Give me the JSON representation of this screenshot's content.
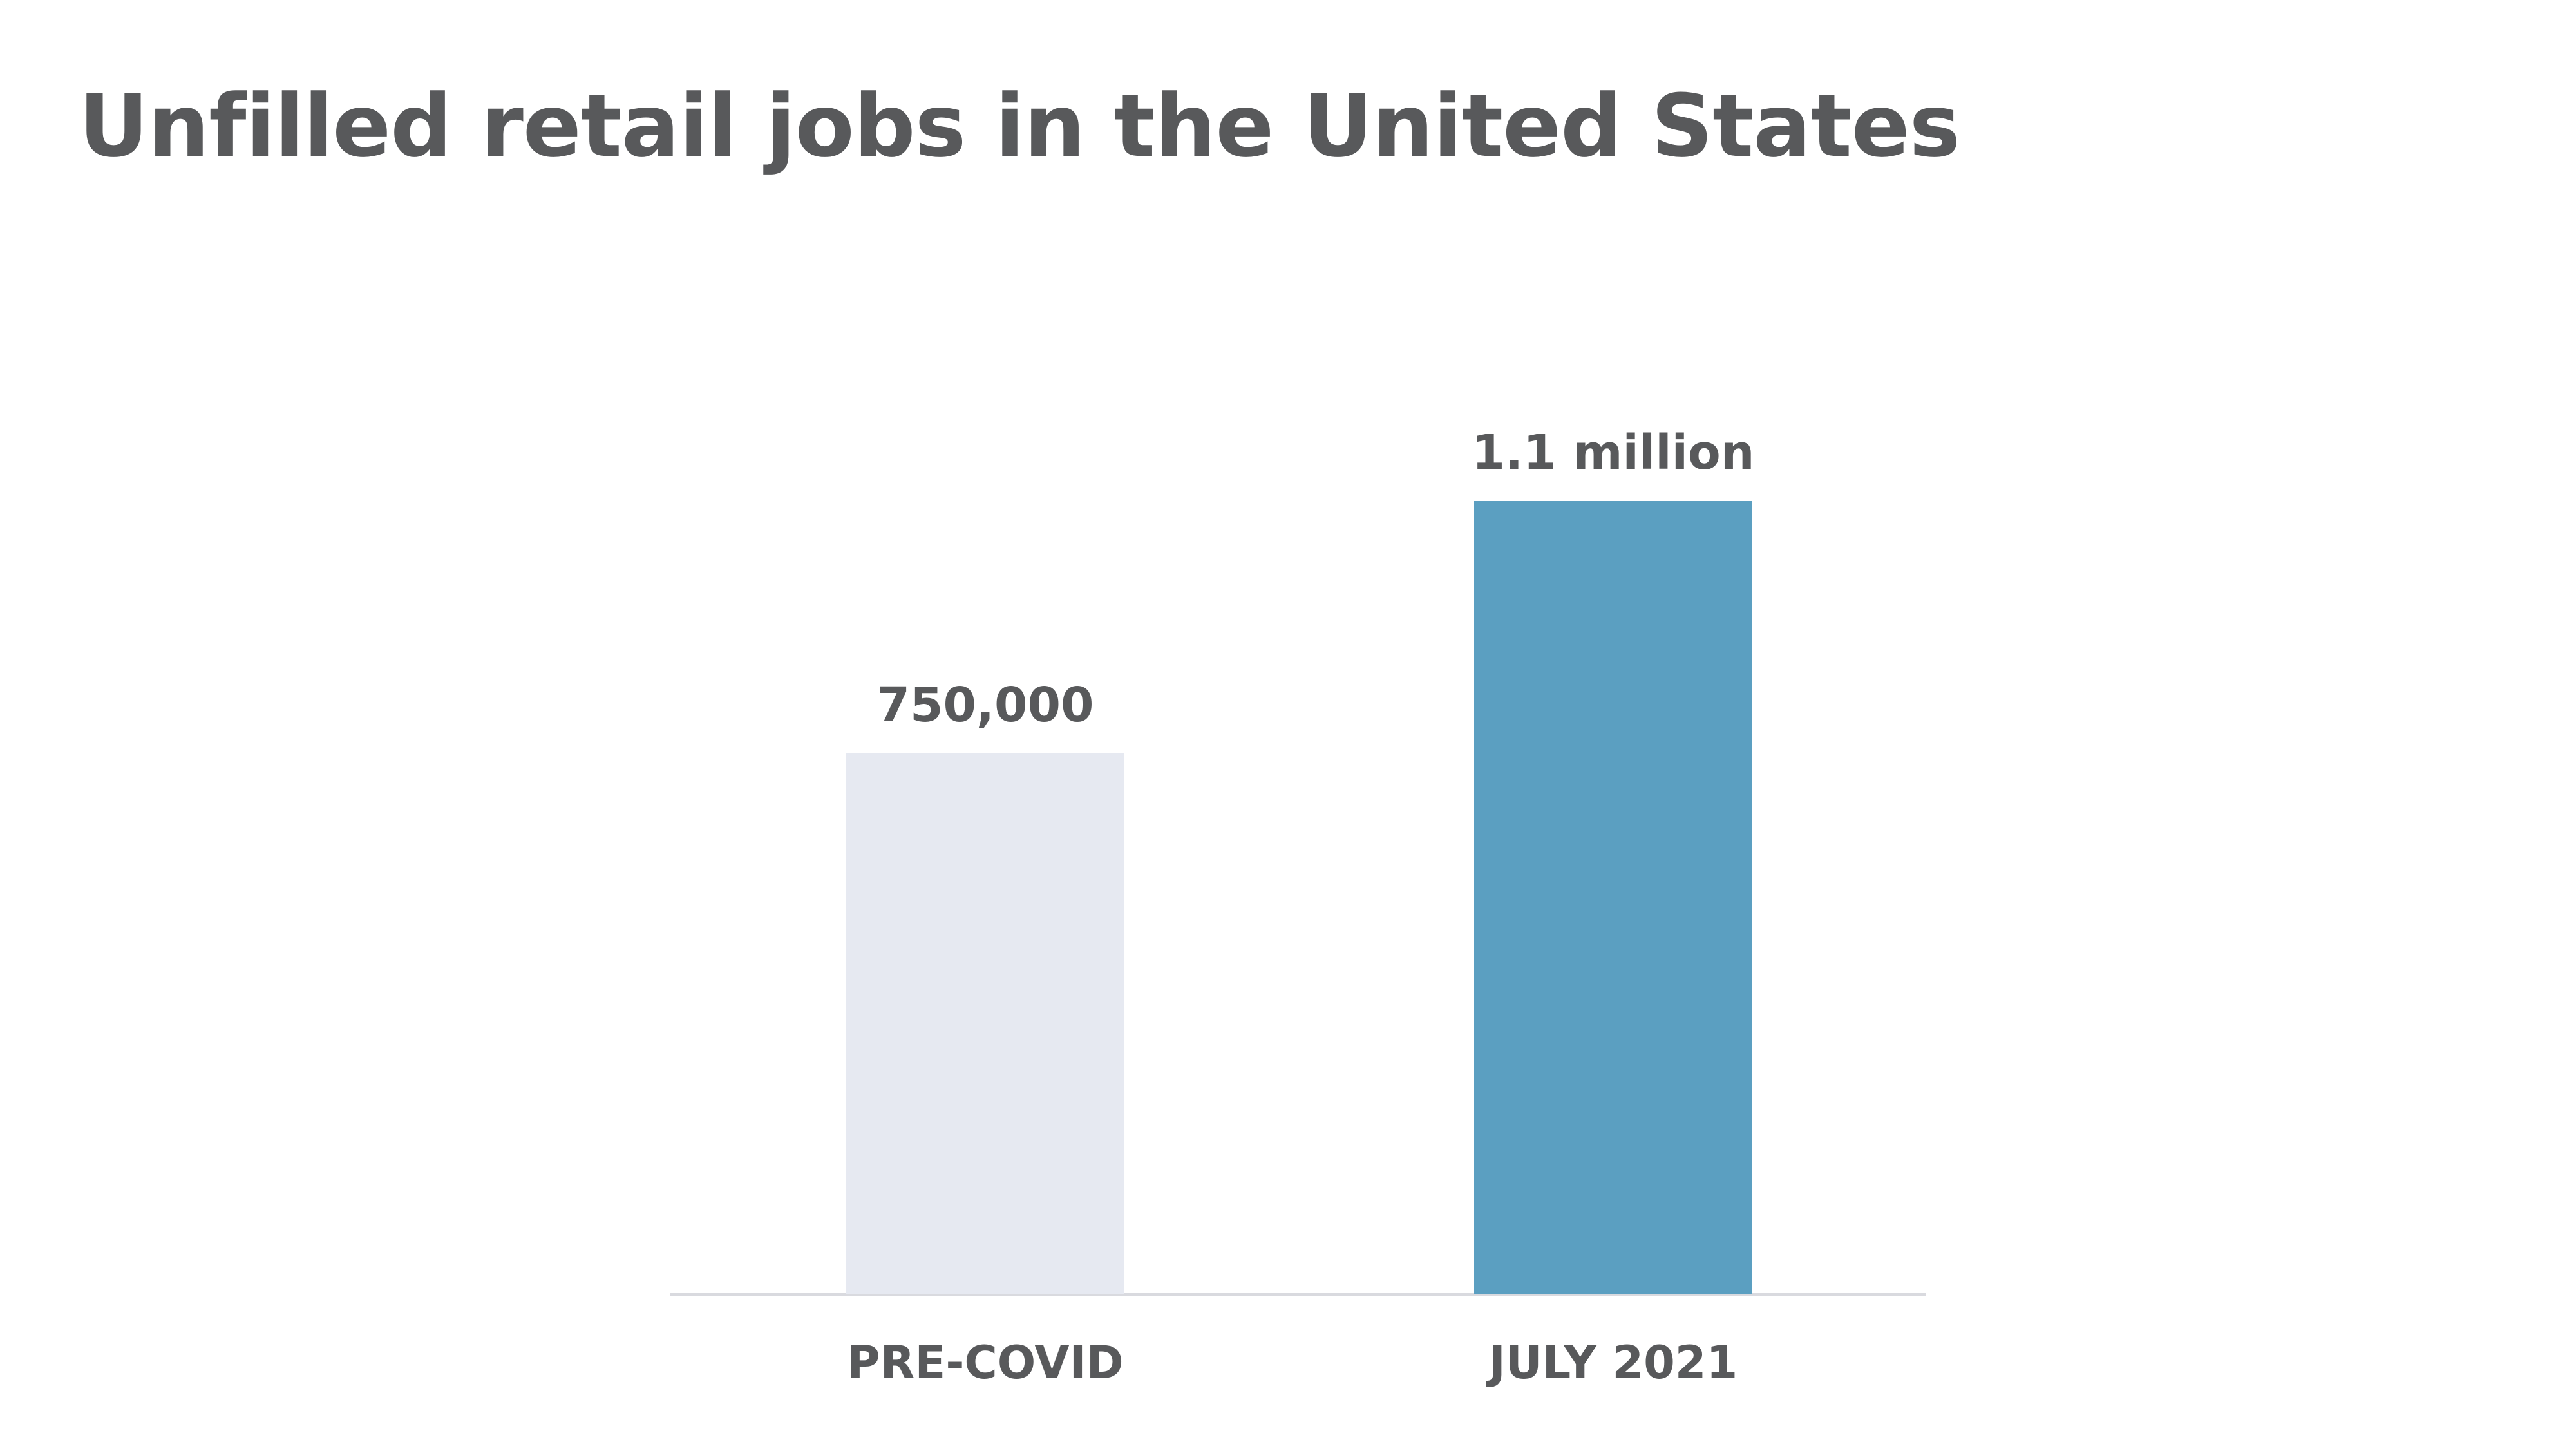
{
  "chart_data": {
    "type": "bar",
    "title": "Unfilled retail jobs in the United States",
    "categories": [
      "PRE-COVID",
      "JULY 2021"
    ],
    "values": [
      750000,
      1100000
    ],
    "data_labels": [
      "750,000",
      "1.1 million"
    ],
    "colors": [
      "#e6e9f1",
      "#5b9fc1"
    ],
    "xlabel": "",
    "ylabel": "",
    "ylim": [
      0,
      1100000
    ],
    "grid": false,
    "legend": "none"
  }
}
